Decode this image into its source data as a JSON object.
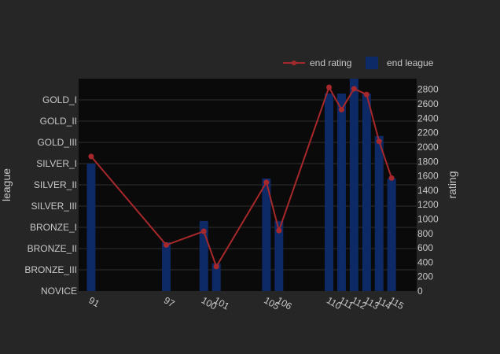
{
  "chart_data": {
    "type": "bar",
    "x": [
      91,
      97,
      100,
      101,
      105,
      106,
      110,
      111,
      112,
      113,
      114,
      115
    ],
    "x_tick_labels": [
      "91",
      "97",
      "100",
      "101",
      "105",
      "106",
      "110",
      "111",
      "112",
      "113",
      "114",
      "115"
    ],
    "y_left": {
      "label": "league",
      "categories": [
        "NOVICE",
        "BRONZE_III",
        "BRONZE_II",
        "BRONZE_I",
        "SILVER_III",
        "SILVER_II",
        "SILVER_I",
        "GOLD_III",
        "GOLD_II",
        "GOLD_I"
      ]
    },
    "y_right": {
      "label": "rating",
      "range": [
        0,
        2950
      ],
      "ticks": [
        0,
        200,
        400,
        600,
        800,
        1000,
        1200,
        1400,
        1600,
        1800,
        2000,
        2200,
        2400,
        2600,
        2800
      ]
    },
    "series": [
      {
        "name": "end league",
        "kind": "bar",
        "axis": "left",
        "color": "#0d2a66",
        "values": [
          "SILVER_I",
          "BRONZE_II",
          "BRONZE_I",
          "BRONZE_III",
          "SILVER_II",
          "BRONZE_I",
          "GOLD_I",
          "GOLD_I",
          "GOLD_I+",
          "GOLD_I",
          "GOLD_III",
          "SILVER_II"
        ],
        "level_values": [
          6,
          2.3,
          3.3,
          1.3,
          5.3,
          3.3,
          9.3,
          9.3,
          10,
          9.3,
          7.3,
          5.3
        ]
      },
      {
        "name": "end rating",
        "kind": "line",
        "axis": "right",
        "color": "#a7282b",
        "values": [
          1870,
          640,
          830,
          340,
          1510,
          840,
          2830,
          2520,
          2810,
          2730,
          2080,
          1570
        ]
      }
    ],
    "grid": true,
    "legend": "top-right",
    "colors": {
      "background": "#262626",
      "plot": "#0a0a0a",
      "grid": "#2e2e2e",
      "text": "#c8c8c8"
    }
  }
}
